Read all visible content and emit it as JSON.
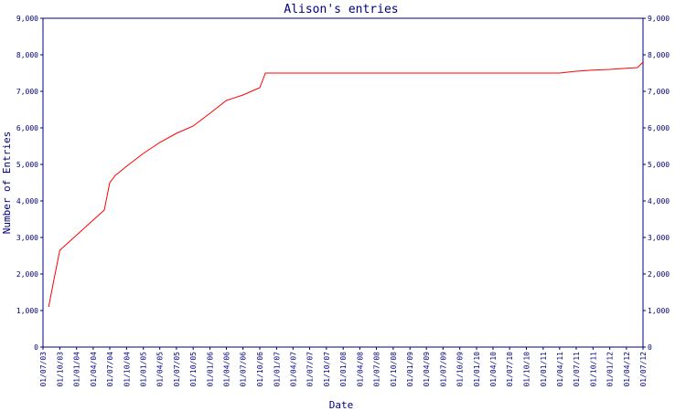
{
  "chart_data": {
    "type": "line",
    "title": "Alison's entries",
    "xlabel": "Date",
    "ylabel": "Number of Entries",
    "ylim": [
      0,
      9000
    ],
    "yticks": [
      0,
      1000,
      2000,
      3000,
      4000,
      5000,
      6000,
      7000,
      8000,
      9000
    ],
    "ytick_labels": [
      "0",
      "1,000",
      "2,000",
      "3,000",
      "4,000",
      "5,000",
      "6,000",
      "7,000",
      "8,000",
      "9,000"
    ],
    "xticks": [
      "01/07/03",
      "01/10/03",
      "01/01/04",
      "01/04/04",
      "01/07/04",
      "01/10/04",
      "01/01/05",
      "01/04/05",
      "01/07/05",
      "01/10/05",
      "01/01/06",
      "01/04/06",
      "01/07/06",
      "01/10/06",
      "01/01/07",
      "01/04/07",
      "01/07/07",
      "01/10/07",
      "01/01/08",
      "01/04/08",
      "01/07/08",
      "01/10/08",
      "01/01/09",
      "01/04/09",
      "01/07/09",
      "01/10/09",
      "01/01/10",
      "01/04/10",
      "01/07/10",
      "01/10/10",
      "01/01/11",
      "01/04/11",
      "01/07/11",
      "01/10/11",
      "01/01/12",
      "01/04/12",
      "01/07/12"
    ],
    "grid": false,
    "colors": {
      "frame": "#000080",
      "text": "#000080",
      "line": "#ff0000"
    },
    "series": [
      {
        "x": [
          "01/08/03",
          "01/09/03",
          "01/10/03",
          "01/06/04",
          "01/07/04",
          "01/08/04",
          "01/10/04",
          "01/01/05",
          "01/04/05",
          "01/07/05",
          "01/10/05",
          "01/01/06",
          "01/04/06",
          "01/07/06",
          "01/10/06",
          "01/11/06",
          "01/04/11",
          "01/07/11",
          "01/10/11",
          "01/01/12",
          "01/04/12",
          "01/06/12",
          "01/07/12"
        ],
        "values": [
          1100,
          1900,
          2650,
          3750,
          4500,
          4700,
          4950,
          5300,
          5600,
          5850,
          6050,
          6400,
          6750,
          6900,
          7100,
          7500,
          7500,
          7550,
          7580,
          7600,
          7630,
          7650,
          7800
        ]
      }
    ]
  }
}
